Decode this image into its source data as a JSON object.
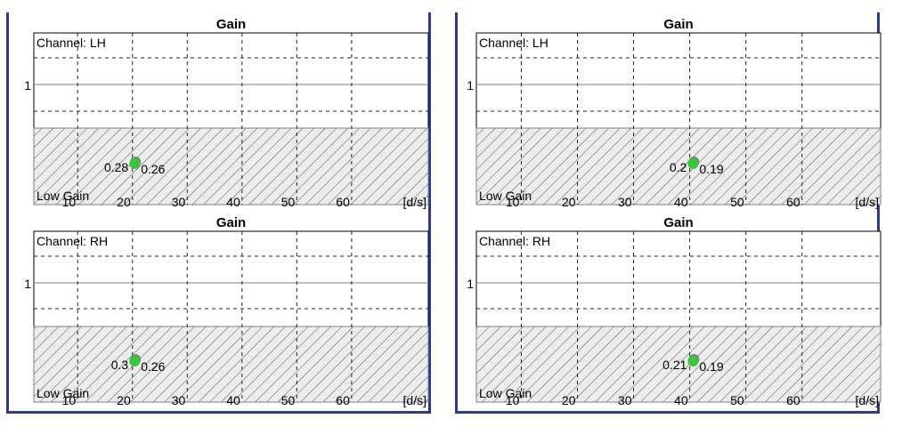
{
  "chart_data": [
    {
      "type": "scatter",
      "title": "Gain",
      "channel_label": "Channel: LH",
      "region_label": "Low Gain",
      "ytick": "1",
      "xlabel": "[d/s]",
      "xticks": [
        10,
        20,
        30,
        40,
        50,
        60
      ],
      "xlim": [
        2,
        74
      ],
      "points": [
        {
          "x": 20.4,
          "left_label": "0.28",
          "right_label": "0.26"
        }
      ]
    },
    {
      "type": "scatter",
      "title": "Gain",
      "channel_label": "Channel: RH",
      "region_label": "Low Gain",
      "ytick": "1",
      "xlabel": "[d/s]",
      "xticks": [
        10,
        20,
        30,
        40,
        50,
        60
      ],
      "xlim": [
        2,
        74
      ],
      "points": [
        {
          "x": 20.4,
          "left_label": "0.3",
          "right_label": "0.26"
        }
      ]
    },
    {
      "type": "scatter",
      "title": "Gain",
      "channel_label": "Channel: LH",
      "region_label": "Low Gain",
      "ytick": "1",
      "xlabel": "[d/s]",
      "xticks": [
        10,
        20,
        30,
        40,
        50,
        60
      ],
      "xlim": [
        2,
        74
      ],
      "points": [
        {
          "x": 40.6,
          "left_label": "0.2",
          "right_label": "0.19"
        }
      ]
    },
    {
      "type": "scatter",
      "title": "Gain",
      "channel_label": "Channel: RH",
      "region_label": "Low Gain",
      "ytick": "1",
      "xlabel": "[d/s]",
      "xticks": [
        10,
        20,
        30,
        40,
        50,
        60
      ],
      "xlim": [
        2,
        74
      ],
      "points": [
        {
          "x": 40.6,
          "left_label": "0.21",
          "right_label": "0.19"
        }
      ]
    }
  ],
  "colors": {
    "frame": "#2d3a8a",
    "grid_solid": "#808080",
    "grid_dashed": "#222222",
    "hatch_fill": "#ececec",
    "hatch_line": "#555555",
    "marker": "#3cc43c",
    "marker_shadow": "#6f8f6f"
  }
}
